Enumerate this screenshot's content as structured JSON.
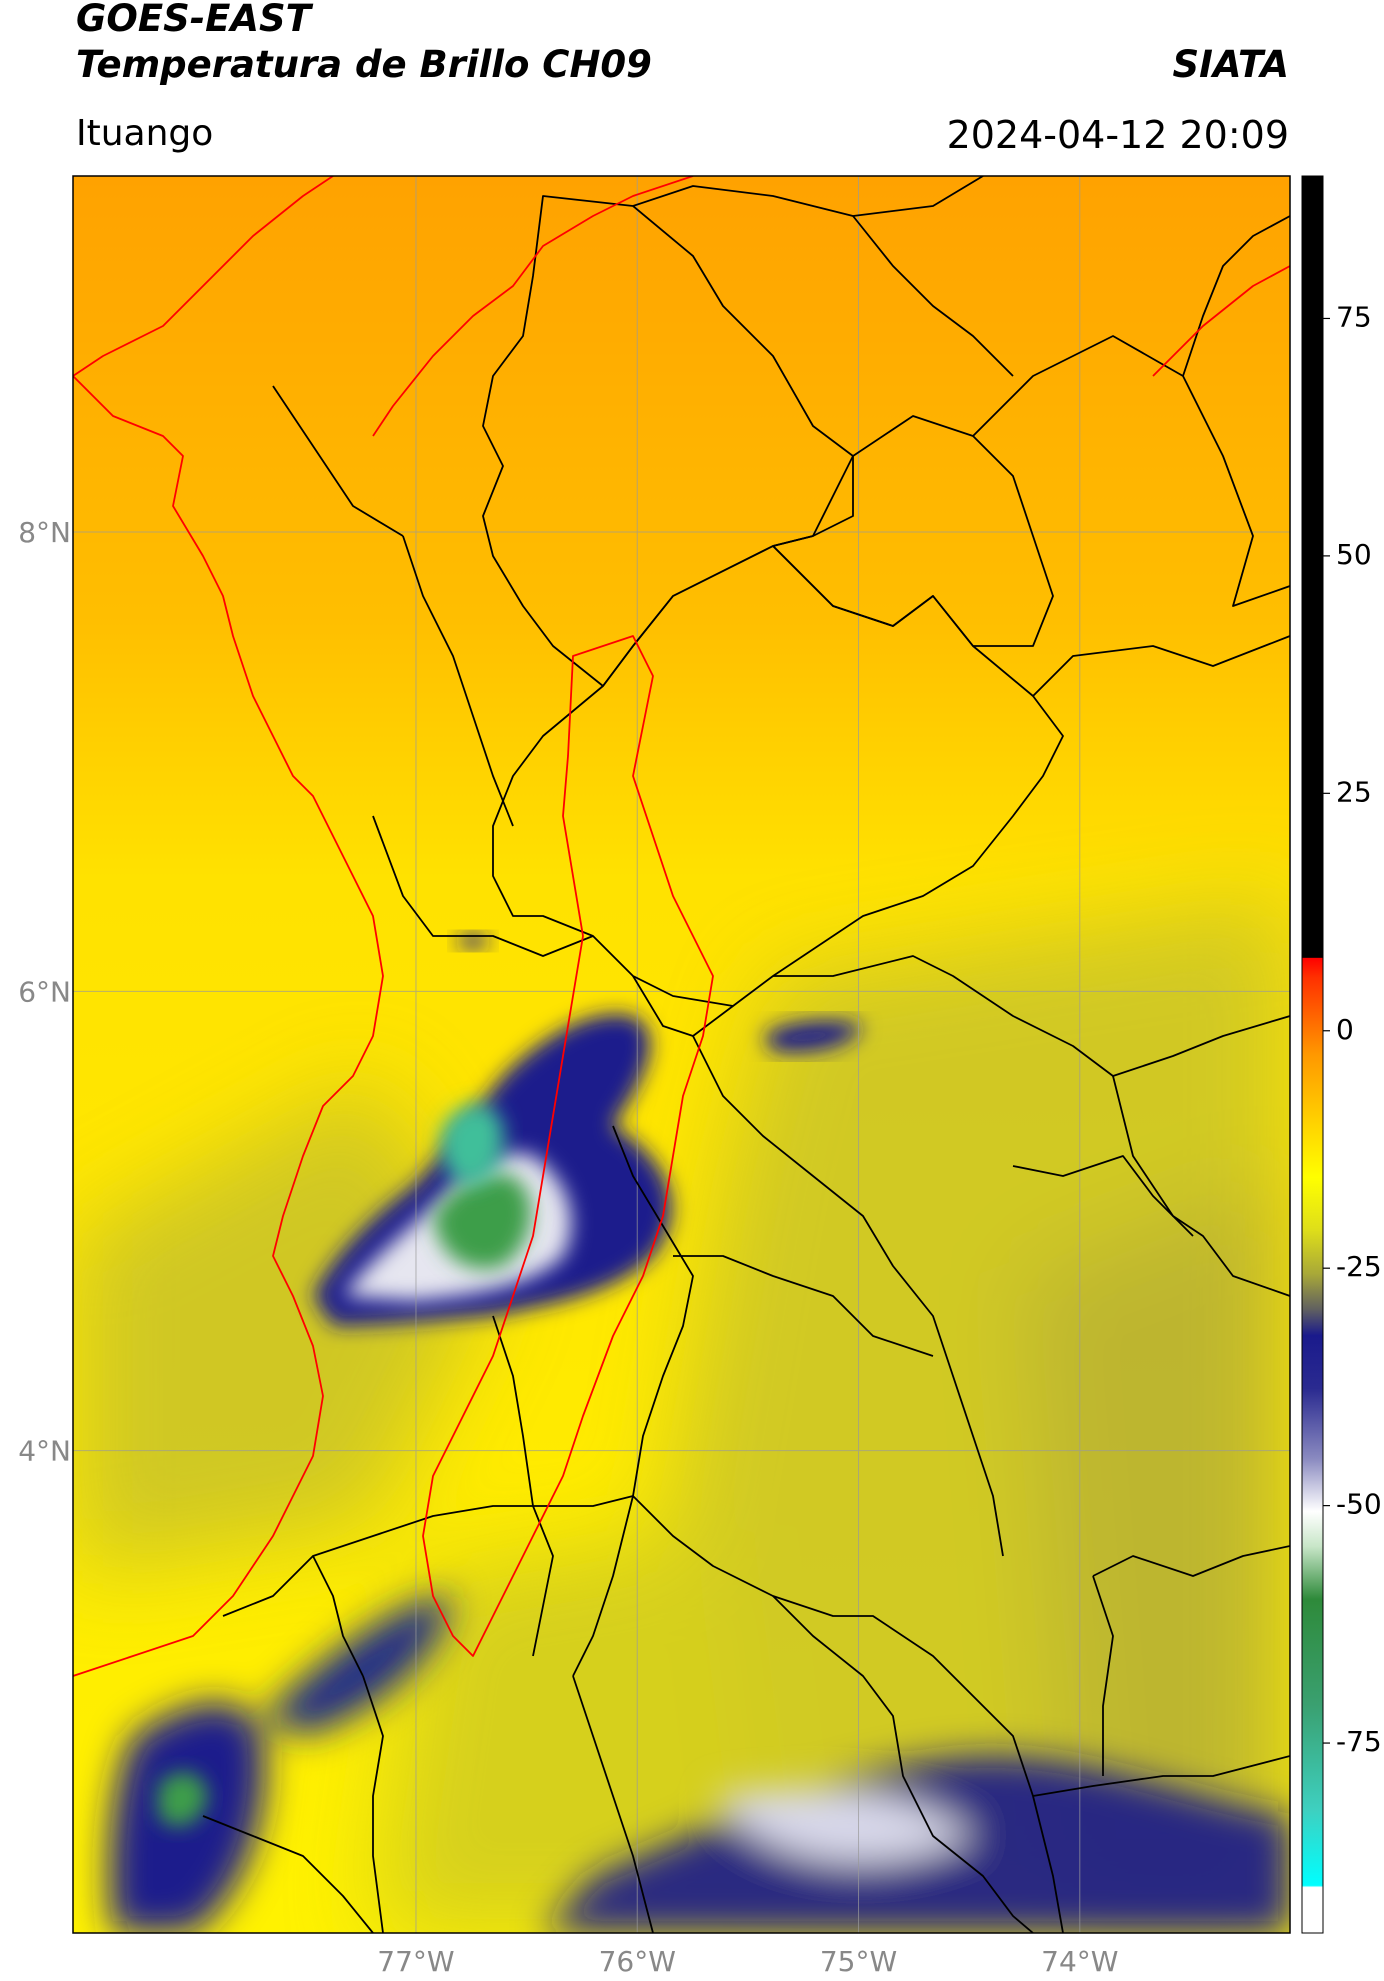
{
  "header": {
    "title_line1": "GOES-EAST",
    "title_line2": "Temperatura de Brillo CH09",
    "organization": "SIATA",
    "region": "Ituango",
    "timestamp": "2024-04-12 20:09"
  },
  "map": {
    "lon_range": [
      -78.55,
      -73.05
    ],
    "lat_range": [
      1.9,
      9.55
    ],
    "lat_ticks": [
      {
        "value": 8,
        "label": "8°N"
      },
      {
        "value": 6,
        "label": "6°N"
      },
      {
        "value": 4,
        "label": "4°N"
      }
    ],
    "lon_ticks": [
      {
        "value": -77,
        "label": "77°W"
      },
      {
        "value": -76,
        "label": "76°W"
      },
      {
        "value": -75,
        "label": "75°W"
      },
      {
        "value": -74,
        "label": "74°W"
      }
    ],
    "colors": {
      "background_orange": "#ffa900",
      "background_yellow": "#ffe600",
      "olive": "#bdb832",
      "navy": "#1a1a8c",
      "green": "#3c9e48",
      "teal": "#3fbf9a",
      "boundary_black": "#000000",
      "boundary_red": "#ff0000",
      "gridline": "#9a9a9a"
    }
  },
  "colorbar": {
    "range": [
      -95,
      90
    ],
    "ticks": [
      {
        "value": 75,
        "label": "75"
      },
      {
        "value": 50,
        "label": "50"
      },
      {
        "value": 25,
        "label": "25"
      },
      {
        "value": 0,
        "label": "0"
      },
      {
        "value": -25,
        "label": "-25"
      },
      {
        "value": -50,
        "label": "-50"
      },
      {
        "value": -75,
        "label": "-75"
      }
    ]
  }
}
